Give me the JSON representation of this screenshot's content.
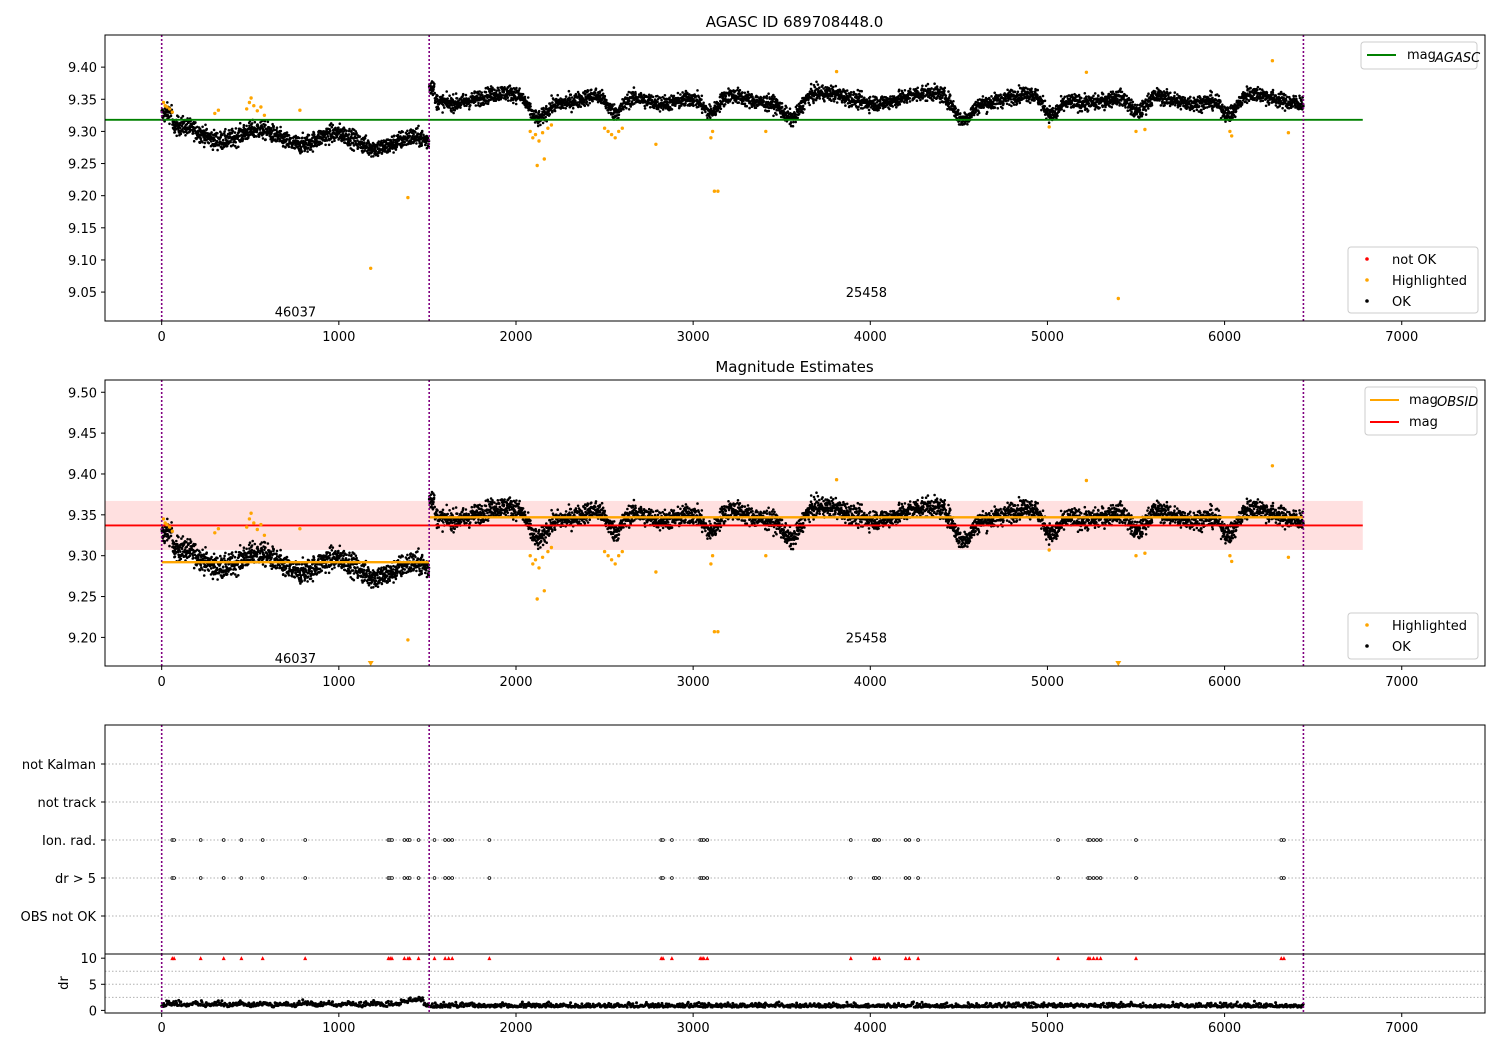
{
  "figure": {
    "top_title": "AGASC ID 689708448.0",
    "mid_title": "Magnitude Estimates"
  },
  "colors": {
    "ok": "#000000",
    "highlighted": "#ffa500",
    "not_ok": "#ff0000",
    "agasc_line": "#008000",
    "obsid_line": "#ffa500",
    "mean_line": "#ff0000",
    "mean_band": "#ffe0e0",
    "obs_boundary": "#800080"
  },
  "chart_data": [
    {
      "id": "top",
      "type": "scatter",
      "title": "AGASC ID 689708448.0",
      "xlim": [
        -320,
        7470
      ],
      "ylim": [
        9.005,
        9.45
      ],
      "x_ticks": [
        "0",
        "1000",
        "2000",
        "3000",
        "4000",
        "5000",
        "6000",
        "7000"
      ],
      "x_tick_values": [
        0,
        1000,
        2000,
        3000,
        4000,
        5000,
        6000,
        7000
      ],
      "y_ticks": [
        "9.05",
        "9.10",
        "9.15",
        "9.20",
        "9.25",
        "9.30",
        "9.35",
        "9.40"
      ],
      "y_tick_values": [
        9.05,
        9.1,
        9.15,
        9.2,
        9.25,
        9.3,
        9.35,
        9.4
      ],
      "obs_boundaries": [
        0,
        1510,
        6445
      ],
      "obs_labels": [
        {
          "text": "46037",
          "x": 755,
          "y": 9.02
        },
        {
          "text": "25458",
          "x": 3978,
          "y": 9.05
        }
      ],
      "mag_agasc": 9.318,
      "agasc_line_x": [
        -320,
        6780
      ],
      "legend_top": {
        "entries": [
          {
            "label": "mag",
            "sub": "AGASC",
            "color": "#008000"
          }
        ],
        "position": "upper right"
      },
      "legend_bottom": {
        "entries": [
          {
            "label": "not OK",
            "color": "#ff0000"
          },
          {
            "label": "Highlighted",
            "color": "#ffa500"
          },
          {
            "label": "OK",
            "color": "#000000"
          }
        ],
        "position": "lower right"
      },
      "highlighted_points": [
        [
          10,
          9.345
        ],
        [
          20,
          9.34
        ],
        [
          30,
          9.338
        ],
        [
          45,
          9.335
        ],
        [
          60,
          9.33
        ],
        [
          300,
          9.328
        ],
        [
          320,
          9.333
        ],
        [
          480,
          9.335
        ],
        [
          495,
          9.345
        ],
        [
          505,
          9.352
        ],
        [
          520,
          9.34
        ],
        [
          540,
          9.332
        ],
        [
          560,
          9.338
        ],
        [
          580,
          9.325
        ],
        [
          780,
          9.333
        ],
        [
          1180,
          9.087
        ],
        [
          1390,
          9.197
        ],
        [
          2080,
          9.3
        ],
        [
          2095,
          9.29
        ],
        [
          2110,
          9.295
        ],
        [
          2120,
          9.247
        ],
        [
          2130,
          9.285
        ],
        [
          2150,
          9.298
        ],
        [
          2160,
          9.257
        ],
        [
          2180,
          9.305
        ],
        [
          2200,
          9.31
        ],
        [
          2500,
          9.305
        ],
        [
          2520,
          9.3
        ],
        [
          2540,
          9.295
        ],
        [
          2560,
          9.29
        ],
        [
          2580,
          9.3
        ],
        [
          2600,
          9.305
        ],
        [
          2790,
          9.28
        ],
        [
          3100,
          9.29
        ],
        [
          3110,
          9.3
        ],
        [
          3120,
          9.207
        ],
        [
          3140,
          9.207
        ],
        [
          3410,
          9.3
        ],
        [
          3810,
          9.393
        ],
        [
          5010,
          9.307
        ],
        [
          5220,
          9.392
        ],
        [
          5400,
          9.04
        ],
        [
          5500,
          9.3
        ],
        [
          5550,
          9.303
        ],
        [
          6030,
          9.3
        ],
        [
          6040,
          9.293
        ],
        [
          6270,
          9.41
        ],
        [
          6360,
          9.298
        ]
      ]
    },
    {
      "id": "middle",
      "type": "scatter",
      "title": "Magnitude Estimates",
      "xlim": [
        -320,
        7470
      ],
      "ylim": [
        9.165,
        9.515
      ],
      "x_ticks": [
        "0",
        "1000",
        "2000",
        "3000",
        "4000",
        "5000",
        "6000",
        "7000"
      ],
      "x_tick_values": [
        0,
        1000,
        2000,
        3000,
        4000,
        5000,
        6000,
        7000
      ],
      "y_ticks": [
        "9.20",
        "9.25",
        "9.30",
        "9.35",
        "9.40",
        "9.45",
        "9.50"
      ],
      "y_tick_values": [
        9.2,
        9.25,
        9.3,
        9.35,
        9.4,
        9.45,
        9.5
      ],
      "obs_boundaries": [
        0,
        1510,
        6445
      ],
      "obs_labels": [
        {
          "text": "46037",
          "x": 755,
          "y": 9.175
        },
        {
          "text": "25458",
          "x": 3978,
          "y": 9.2
        }
      ],
      "mag_mean": 9.337,
      "mag_band": [
        9.307,
        9.367
      ],
      "mean_line_x": [
        -320,
        6780
      ],
      "obsid_segments": [
        {
          "x": [
            0,
            1510
          ],
          "mag": 9.292
        },
        {
          "x": [
            1510,
            6445
          ],
          "mag": 9.347
        }
      ],
      "off_scale_markers_x": [
        1180,
        5400
      ],
      "legend_top": {
        "entries": [
          {
            "label": "mag",
            "sub": "OBSID",
            "color": "#ffa500"
          },
          {
            "label": "mag",
            "sub": "",
            "color": "#ff0000"
          }
        ],
        "position": "upper right"
      },
      "legend_bottom": {
        "entries": [
          {
            "label": "Highlighted",
            "color": "#ffa500"
          },
          {
            "label": "OK",
            "color": "#000000"
          }
        ],
        "position": "lower right"
      }
    },
    {
      "id": "flags",
      "type": "scatter",
      "xlim": [
        -320,
        7470
      ],
      "categories": [
        "not Kalman",
        "not track",
        "Ion. rad.",
        "dr > 5",
        "OBS not OK"
      ],
      "obs_boundaries": [
        0,
        1510,
        6445
      ],
      "flag_x": [
        60,
        70,
        220,
        350,
        450,
        570,
        810,
        1280,
        1290,
        1300,
        1370,
        1390,
        1400,
        1450,
        1540,
        1600,
        1620,
        1640,
        1850,
        2820,
        2830,
        2880,
        3040,
        3050,
        3060,
        3080,
        3890,
        4020,
        4030,
        4050,
        4200,
        4220,
        4270,
        5060,
        5230,
        5240,
        5260,
        5280,
        5300,
        5500,
        6320,
        6335
      ]
    },
    {
      "id": "dr",
      "type": "scatter",
      "ylabel": "dr",
      "xlim": [
        -320,
        7470
      ],
      "ylim": [
        -0.5,
        10.8
      ],
      "y_ticks": [
        "0",
        "5",
        "10"
      ],
      "y_tick_values": [
        0,
        5,
        10
      ],
      "x_ticks": [
        "0",
        "1000",
        "2000",
        "3000",
        "4000",
        "5000",
        "6000",
        "7000"
      ],
      "x_tick_values": [
        0,
        1000,
        2000,
        3000,
        4000,
        5000,
        6000,
        7000
      ],
      "clip_value": 10,
      "obs_boundaries": [
        0,
        1510,
        6445
      ]
    }
  ]
}
